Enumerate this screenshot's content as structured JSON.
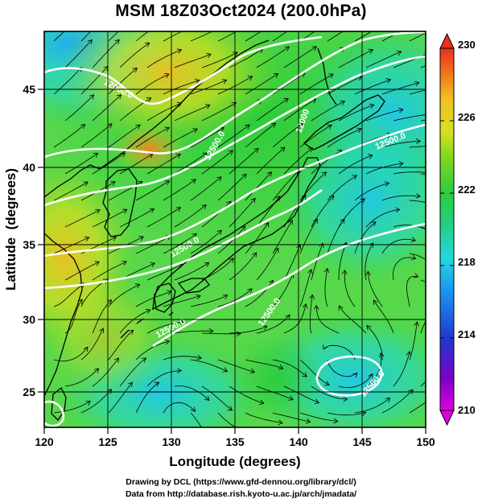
{
  "title": "MSM 18Z03Oct2024 (200.0hPa)",
  "x_axis": {
    "label": "Longitude (degrees)",
    "ticks": [
      "120",
      "125",
      "130",
      "135",
      "140",
      "145",
      "150"
    ],
    "range": [
      120,
      150
    ]
  },
  "y_axis": {
    "label": "Latitude  (degrees)",
    "ticks": [
      "25",
      "30",
      "35",
      "40",
      "45"
    ],
    "range": [
      22.4,
      47.6
    ]
  },
  "colorbar": {
    "ticks": [
      "230",
      "226",
      "222",
      "218",
      "214",
      "210"
    ],
    "range": [
      210,
      230
    ],
    "colors": [
      "#e000e0",
      "#7a00c8",
      "#1e3ad0",
      "#1c8ef0",
      "#20d8e0",
      "#22d07a",
      "#2ecc40",
      "#80d820",
      "#d8e020",
      "#f0c020",
      "#f07818",
      "#e83020"
    ]
  },
  "contour_labels": [
    "12500.0",
    "12000.0",
    "12500.0",
    "12500.0",
    "12500.0",
    "12500.0",
    "12500.0",
    "12000"
  ],
  "credits": {
    "line1": "Drawing by DCL (https://www.gfd-dennou.org/library/dcl/)",
    "line2": "Data from http://database.rish.kyoto-u.ac.jp/arch/jmadata/"
  },
  "chart_data": {
    "type": "heatmap",
    "title": "MSM 18Z03Oct2024 (200.0hPa)",
    "xlabel": "Longitude (degrees)",
    "ylabel": "Latitude  (degrees)",
    "xlim": [
      120,
      150
    ],
    "ylim": [
      22.4,
      47.6
    ],
    "colorbar_range": [
      210,
      230
    ],
    "overlays": [
      "streamlines",
      "geopotential height contours"
    ]
  }
}
